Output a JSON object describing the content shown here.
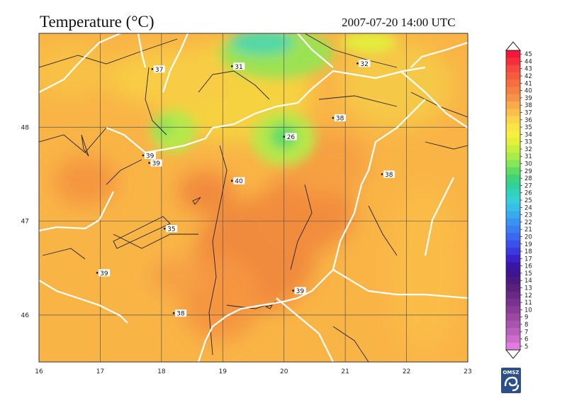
{
  "header": {
    "title": "Temperature (°C)",
    "datetime": "2007-07-20 14:00 UTC"
  },
  "axes": {
    "lon_ticks": [
      "16",
      "17",
      "18",
      "19",
      "20",
      "21",
      "22",
      "23"
    ],
    "lat_ticks": [
      "48",
      "47",
      "46"
    ],
    "lon_range": [
      16,
      23
    ],
    "lat_range": [
      45.5,
      49.0
    ]
  },
  "stations": [
    {
      "lon": 17.85,
      "lat": 48.62,
      "value": "37"
    },
    {
      "lon": 19.15,
      "lat": 48.65,
      "value": "31"
    },
    {
      "lon": 21.2,
      "lat": 48.68,
      "value": "32"
    },
    {
      "lon": 20.8,
      "lat": 48.1,
      "value": "38"
    },
    {
      "lon": 20.0,
      "lat": 47.9,
      "value": "26"
    },
    {
      "lon": 17.7,
      "lat": 47.7,
      "value": "39"
    },
    {
      "lon": 17.8,
      "lat": 47.62,
      "value": "39"
    },
    {
      "lon": 19.15,
      "lat": 47.43,
      "value": "40"
    },
    {
      "lon": 21.6,
      "lat": 47.5,
      "value": "38"
    },
    {
      "lon": 18.05,
      "lat": 46.92,
      "value": "35"
    },
    {
      "lon": 16.95,
      "lat": 46.45,
      "value": "39"
    },
    {
      "lon": 20.15,
      "lat": 46.26,
      "value": "39"
    },
    {
      "lon": 18.2,
      "lat": 46.02,
      "value": "38"
    }
  ],
  "colorbar": {
    "labels": [
      "45",
      "44",
      "43",
      "42",
      "41",
      "40",
      "39",
      "38",
      "37",
      "36",
      "35",
      "34",
      "33",
      "32",
      "31",
      "30",
      "29",
      "28",
      "27",
      "26",
      "25",
      "24",
      "23",
      "22",
      "21",
      "20",
      "19",
      "18",
      "17",
      "16",
      "15",
      "14",
      "13",
      "12",
      "11",
      "10",
      "9",
      "8",
      "7",
      "6",
      "5"
    ],
    "colors": [
      "#f5163a",
      "#f52e3a",
      "#f5483e",
      "#f55c3e",
      "#f56e40",
      "#f58044",
      "#f79347",
      "#f9aa4a",
      "#fbc04c",
      "#fcd44a",
      "#fce346",
      "#f5ef3e",
      "#e3f03a",
      "#c8ef40",
      "#a8ec48",
      "#86e655",
      "#5cdc62",
      "#3fd37a",
      "#32d09a",
      "#30d2bc",
      "#34cfd8",
      "#38bfe8",
      "#38aaee",
      "#3894f0",
      "#3a7ef2",
      "#3c68f0",
      "#3a50ea",
      "#3a3ae0",
      "#3a22c8",
      "#3a16a8",
      "#3c1690",
      "#4a1a80",
      "#5a2080",
      "#6a2888",
      "#7a3290",
      "#8a3c98",
      "#9a48a2",
      "#aa54ae",
      "#ba60bc",
      "#cc6ccc",
      "#e07ce0"
    ]
  },
  "logo_text": "OMSZ"
}
